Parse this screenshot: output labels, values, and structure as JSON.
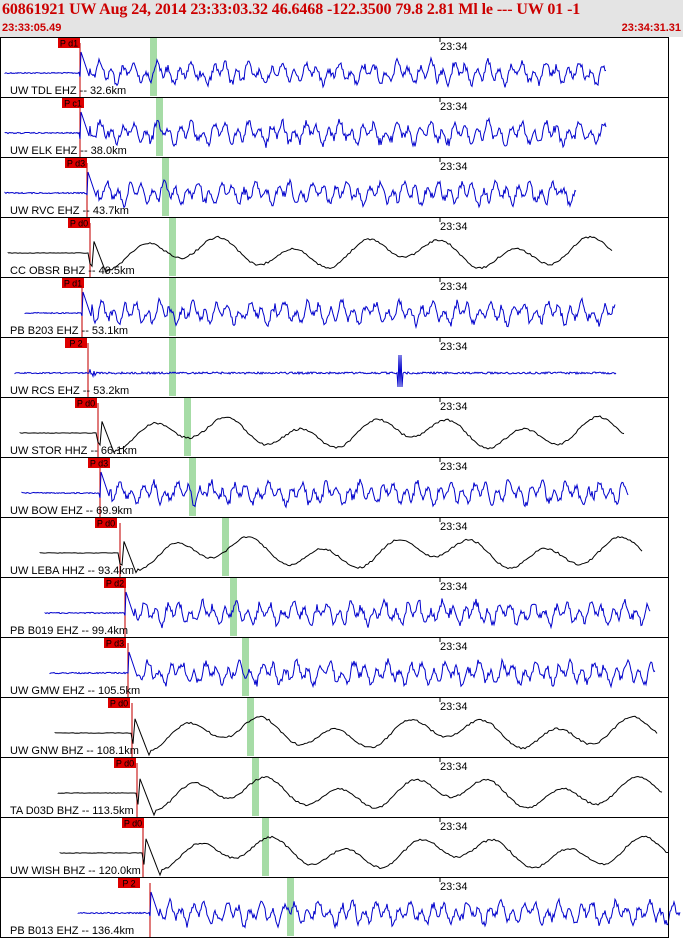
{
  "header": {
    "title": "60861921 UW Aug 24, 2014 23:33:03.32    46.6468 -122.3500 79.8 2.81 Ml le --- UW 01   -1",
    "start_time": "23:33:05.49",
    "end_time": "23:34:31.31"
  },
  "colors": {
    "title": "#cc0000",
    "header_bg": "#e4e4e4",
    "pick_red": "#dd0000",
    "window_green": "#a6dca6",
    "trace_blue": "#0000cc",
    "trace_black": "#000000",
    "panel_border": "#000000"
  },
  "minute_mark_label": "23:34",
  "traces": [
    {
      "label": "UW TDL EHZ -- 32.6km",
      "pick": "P d1",
      "color": "blue",
      "kind": "hf"
    },
    {
      "label": "UW ELK EHZ -- 38.0km",
      "pick": "P c1",
      "color": "blue",
      "kind": "hf"
    },
    {
      "label": "UW RVC EHZ -- 43.7km",
      "pick": "P d3",
      "color": "blue",
      "kind": "hf"
    },
    {
      "label": "CC OBSR BHZ -- 49.5km",
      "pick": "P d0",
      "color": "black",
      "kind": "lf"
    },
    {
      "label": "PB B203 EHZ -- 53.1km",
      "pick": "P d1",
      "color": "blue",
      "kind": "hf"
    },
    {
      "label": "UW RCS EHZ -- 53.2km",
      "pick": "P 2",
      "color": "blue",
      "kind": "flat"
    },
    {
      "label": "UW STOR HHZ -- 66.1km",
      "pick": "P d0",
      "color": "black",
      "kind": "lf"
    },
    {
      "label": "UW BOW EHZ -- 69.9km",
      "pick": "P d3",
      "color": "blue",
      "kind": "hf"
    },
    {
      "label": "UW LEBA HHZ -- 93.4km",
      "pick": "P d0",
      "color": "black",
      "kind": "lf"
    },
    {
      "label": "PB B019 EHZ -- 99.4km",
      "pick": "P d2",
      "color": "blue",
      "kind": "hf"
    },
    {
      "label": "UW GMW EHZ -- 105.5km",
      "pick": "P d3",
      "color": "blue",
      "kind": "hf"
    },
    {
      "label": "UW GNW BHZ -- 108.1km",
      "pick": "P d0",
      "color": "black",
      "kind": "lf"
    },
    {
      "label": "TA D03D BHZ -- 113.5km",
      "pick": "P d0",
      "color": "black",
      "kind": "lf"
    },
    {
      "label": "UW WISH BHZ -- 120.0km",
      "pick": "P d0",
      "color": "black",
      "kind": "lf"
    },
    {
      "label": "PB B013 EHZ -- 136.4km",
      "pick": "P 2",
      "color": "blue",
      "kind": "hf"
    }
  ]
}
